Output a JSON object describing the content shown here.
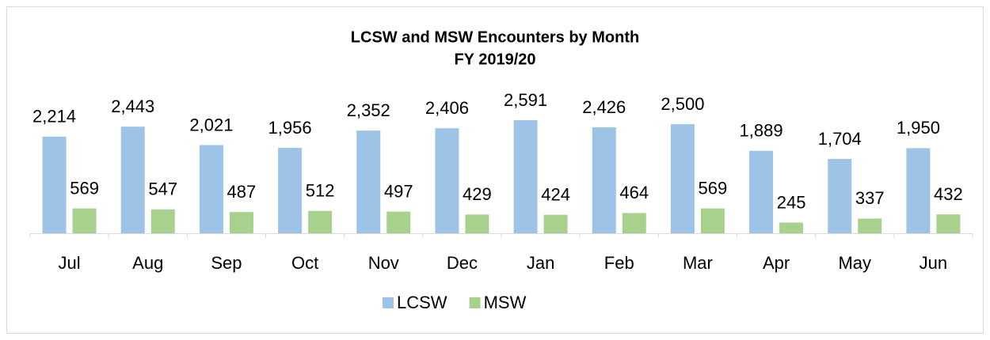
{
  "chart_data": {
    "type": "bar",
    "title": "LCSW and MSW Encounters by Month",
    "subtitle": "FY 2019/20",
    "categories": [
      "Jul",
      "Aug",
      "Sep",
      "Oct",
      "Nov",
      "Dec",
      "Jan",
      "Feb",
      "Mar",
      "Apr",
      "May",
      "Jun"
    ],
    "series": [
      {
        "name": "LCSW",
        "color": "#9dc3e6",
        "values": [
          2214,
          2443,
          2021,
          1956,
          2352,
          2406,
          2591,
          2426,
          2500,
          1889,
          1704,
          1950
        ],
        "value_labels": [
          "2,214",
          "2,443",
          "2,021",
          "1,956",
          "2,352",
          "2,406",
          "2,591",
          "2,426",
          "2,500",
          "1,889",
          "1,704",
          "1,950"
        ]
      },
      {
        "name": "MSW",
        "color": "#a9d18e",
        "values": [
          569,
          547,
          487,
          512,
          497,
          429,
          424,
          464,
          569,
          245,
          337,
          432
        ],
        "value_labels": [
          "569",
          "547",
          "487",
          "512",
          "497",
          "429",
          "424",
          "464",
          "569",
          "245",
          "337",
          "432"
        ]
      }
    ],
    "legend": "bottom"
  }
}
